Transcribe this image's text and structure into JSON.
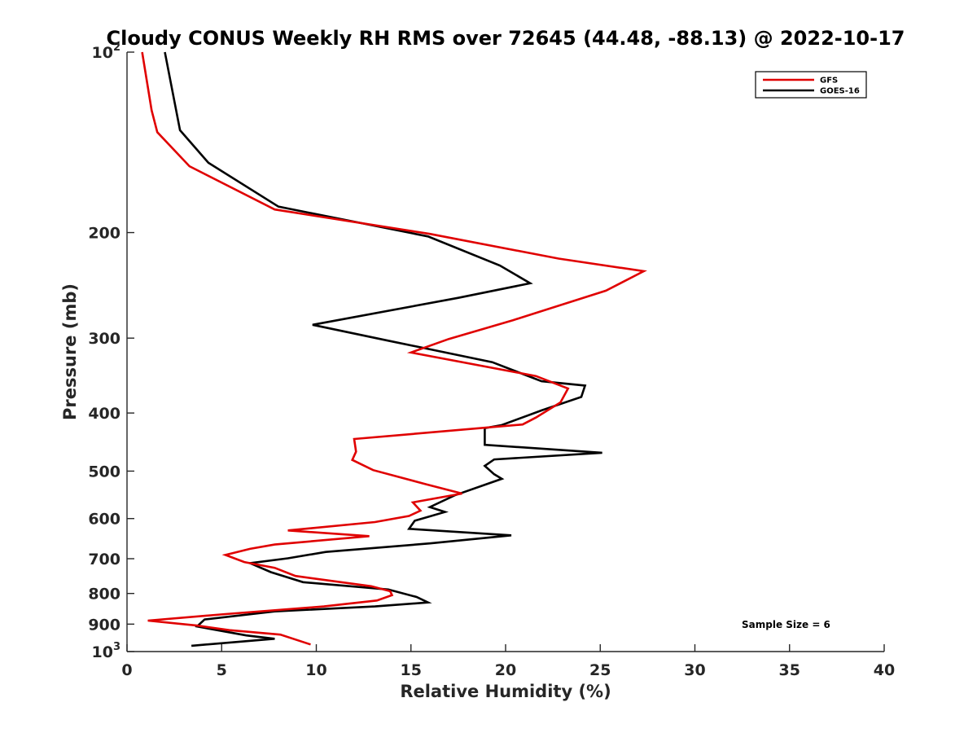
{
  "chart_data": {
    "type": "line",
    "title": "Cloudy CONUS Weekly RH RMS over 72645 (44.48, -88.13) @ 2022-10-17",
    "xlabel": "Relative Humidity (%)",
    "ylabel": "Pressure (mb)",
    "xlim": [
      0,
      40
    ],
    "ylim": [
      100,
      1000
    ],
    "y_scale": "log",
    "y_reversed": true,
    "grid": false,
    "legend_position": "top-right",
    "x_ticks": [
      "0",
      "5",
      "10",
      "15",
      "20",
      "25",
      "30",
      "35",
      "40"
    ],
    "y_ticks": [
      {
        "value": 100,
        "base": "10",
        "exp": "2"
      },
      {
        "value": 200,
        "label": "200"
      },
      {
        "value": 300,
        "label": "300"
      },
      {
        "value": 400,
        "label": "400"
      },
      {
        "value": 500,
        "label": "500"
      },
      {
        "value": 600,
        "label": "600"
      },
      {
        "value": 700,
        "label": "700"
      },
      {
        "value": 800,
        "label": "800"
      },
      {
        "value": 900,
        "label": "900"
      },
      {
        "value": 1000,
        "base": "10",
        "exp": "3"
      }
    ],
    "annotation": "Sample Size = 6",
    "series": [
      {
        "name": "GFS",
        "color": "#e00000",
        "points": [
          [
            0.8,
            100
          ],
          [
            1.3,
            125
          ],
          [
            1.6,
            136
          ],
          [
            3.3,
            155
          ],
          [
            7.8,
            183
          ],
          [
            16,
            201
          ],
          [
            22.8,
            221
          ],
          [
            27.3,
            232
          ],
          [
            25.3,
            250
          ],
          [
            20.4,
            280
          ],
          [
            17,
            301
          ],
          [
            15,
            317
          ],
          [
            21.6,
            347
          ],
          [
            23.3,
            364
          ],
          [
            22.9,
            384
          ],
          [
            21.6,
            407
          ],
          [
            20.9,
            418
          ],
          [
            12,
            442
          ],
          [
            12.1,
            464
          ],
          [
            11.9,
            479
          ],
          [
            13,
            498
          ],
          [
            15.8,
            526
          ],
          [
            17.7,
            545
          ],
          [
            15.1,
            564
          ],
          [
            15.5,
            582
          ],
          [
            14.9,
            594
          ],
          [
            13.1,
            608
          ],
          [
            8.5,
            628
          ],
          [
            12.8,
            642
          ],
          [
            7.8,
            663
          ],
          [
            6.5,
            674
          ],
          [
            5.2,
            690
          ],
          [
            6.2,
            709
          ],
          [
            7.8,
            725
          ],
          [
            8.9,
            748
          ],
          [
            12.9,
            778
          ],
          [
            13.9,
            793
          ],
          [
            14,
            805
          ],
          [
            13.2,
            822
          ],
          [
            10.4,
            841
          ],
          [
            5.2,
            866
          ],
          [
            1.1,
            888
          ],
          [
            3.7,
            905
          ],
          [
            5.4,
            921
          ],
          [
            8.1,
            937
          ],
          [
            9.7,
            973
          ]
        ]
      },
      {
        "name": "GOES-16",
        "color": "#000000",
        "points": [
          [
            2,
            100
          ],
          [
            2.8,
            135
          ],
          [
            4.3,
            153
          ],
          [
            8,
            181
          ],
          [
            15.9,
            203
          ],
          [
            19.7,
            227
          ],
          [
            21.3,
            243
          ],
          [
            17.5,
            257
          ],
          [
            9.8,
            285
          ],
          [
            13.8,
            303
          ],
          [
            19.3,
            329
          ],
          [
            21.9,
            354
          ],
          [
            24.2,
            360
          ],
          [
            24,
            376
          ],
          [
            21.9,
            396
          ],
          [
            19.8,
            419
          ],
          [
            18.9,
            424
          ],
          [
            18.9,
            452
          ],
          [
            25.1,
            466
          ],
          [
            19.4,
            478
          ],
          [
            18.9,
            490
          ],
          [
            19.4,
            506
          ],
          [
            19.8,
            515
          ],
          [
            17.3,
            549
          ],
          [
            16,
            574
          ],
          [
            16.8,
            585
          ],
          [
            15.2,
            605
          ],
          [
            14.9,
            624
          ],
          [
            20.3,
            640
          ],
          [
            16,
            660
          ],
          [
            10.5,
            682
          ],
          [
            8.5,
            699
          ],
          [
            6.5,
            712
          ],
          [
            7.6,
            737
          ],
          [
            9.3,
            766
          ],
          [
            13.8,
            788
          ],
          [
            15.3,
            811
          ],
          [
            15.9,
            828
          ],
          [
            13.1,
            841
          ],
          [
            7.8,
            857
          ],
          [
            4.1,
            884
          ],
          [
            3.7,
            908
          ],
          [
            6.3,
            940
          ],
          [
            7.8,
            952
          ],
          [
            3.4,
            978
          ]
        ]
      }
    ]
  }
}
